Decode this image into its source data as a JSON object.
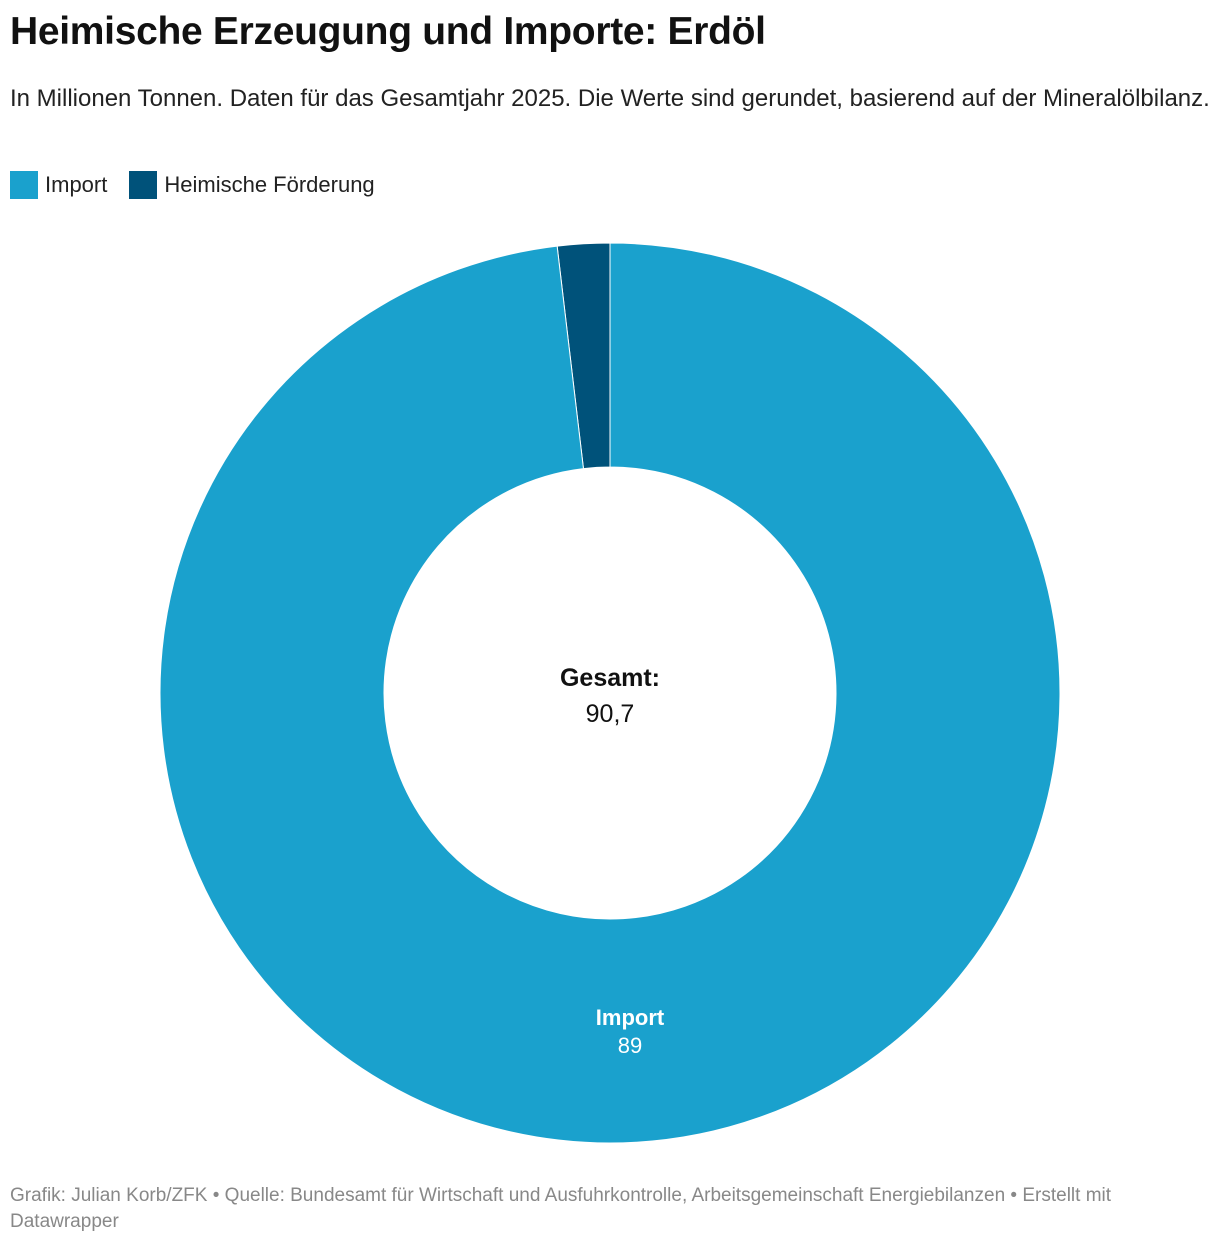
{
  "title": "Heimische Erzeugung und Importe: Erdöl",
  "subtitle": "In Millionen Tonnen. Daten für das Gesamtjahr 2025. Die Werte sind gerundet, basierend auf der Mineralölbilanz.",
  "legend": [
    {
      "label": "Import",
      "color": "#1aa1cd"
    },
    {
      "label": "Heimische Förderung",
      "color": "#00527a"
    }
  ],
  "center": {
    "label": "Gesamt:",
    "value": "90,7"
  },
  "slice_label": {
    "name": "Import",
    "value": "89"
  },
  "footer": {
    "line": "Grafik: Julian Korb/ZFK • Quelle: Bundesamt für Wirtschaft und Ausfuhrkontrolle, Arbeitsgemeinschaft Energiebilanzen • Erstellt mit Datawrapper"
  },
  "chart_data": {
    "type": "pie",
    "title": "Heimische Erzeugung und Importe: Erdöl",
    "subtitle": "In Millionen Tonnen. Daten für das Gesamtjahr 2025. Die Werte sind gerundet, basierend auf der Mineralölbilanz.",
    "donut": true,
    "categories": [
      "Heimische Förderung",
      "Import"
    ],
    "values": [
      1.7,
      89
    ],
    "colors": [
      "#00527a",
      "#1aa1cd"
    ],
    "total": 90.7,
    "legend_position": "top-left"
  }
}
